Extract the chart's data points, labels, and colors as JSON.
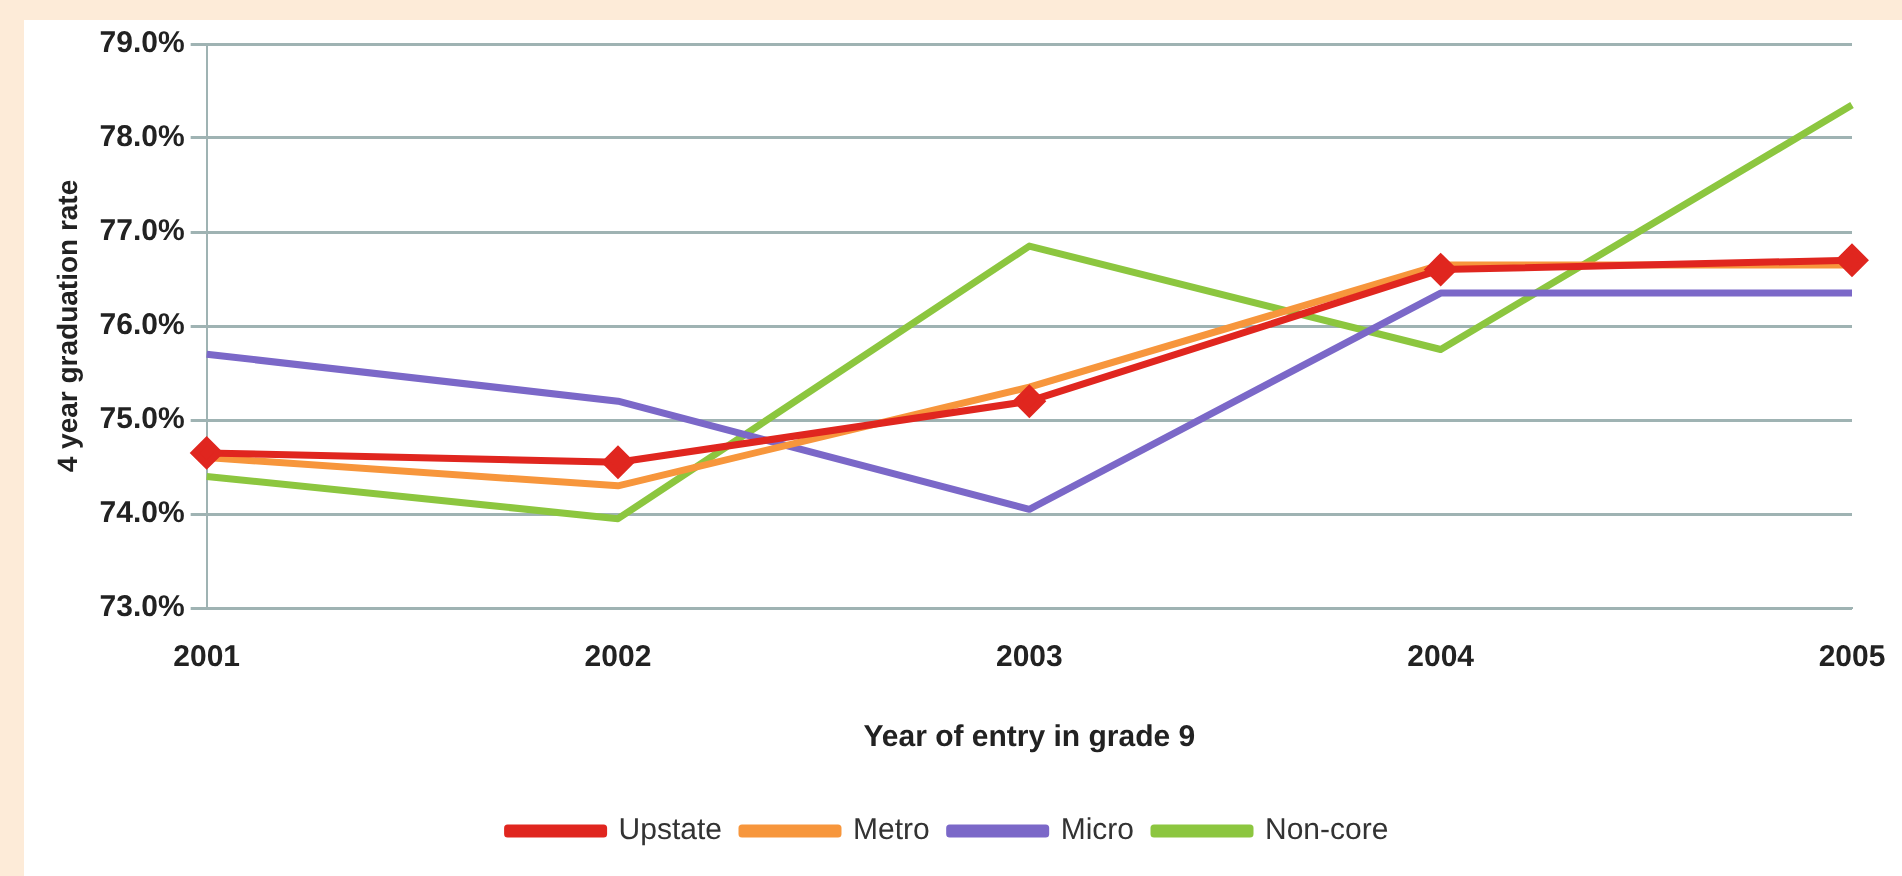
{
  "chart_data": {
    "type": "line",
    "xlabel": "Year of entry in grade 9",
    "ylabel": "4 year graduation rate",
    "categories": [
      "2001",
      "2002",
      "2003",
      "2004",
      "2005"
    ],
    "ylim": [
      73,
      79
    ],
    "yticks": [
      {
        "value": 73,
        "label": "73.0%"
      },
      {
        "value": 74,
        "label": "74.0%"
      },
      {
        "value": 75,
        "label": "75.0%"
      },
      {
        "value": 76,
        "label": "76.0%"
      },
      {
        "value": 77,
        "label": "77.0%"
      },
      {
        "value": 78,
        "label": "78.0%"
      },
      {
        "value": 79,
        "label": "79.0%"
      }
    ],
    "grid": "y",
    "legend": "bottom",
    "series": [
      {
        "name": "Upstate",
        "color": "#e0261f",
        "marker": "diamond",
        "values": [
          74.65,
          74.55,
          75.2,
          76.6,
          76.7
        ]
      },
      {
        "name": "Metro",
        "color": "#f7963c",
        "marker": "none",
        "values": [
          74.6,
          74.3,
          75.35,
          76.65,
          76.65
        ]
      },
      {
        "name": "Micro",
        "color": "#7b68c8",
        "marker": "none",
        "values": [
          75.7,
          75.2,
          74.05,
          76.35,
          76.35
        ]
      },
      {
        "name": "Non-core",
        "color": "#8cc63f",
        "marker": "none",
        "values": [
          74.4,
          73.95,
          76.85,
          75.75,
          78.35
        ]
      }
    ]
  }
}
